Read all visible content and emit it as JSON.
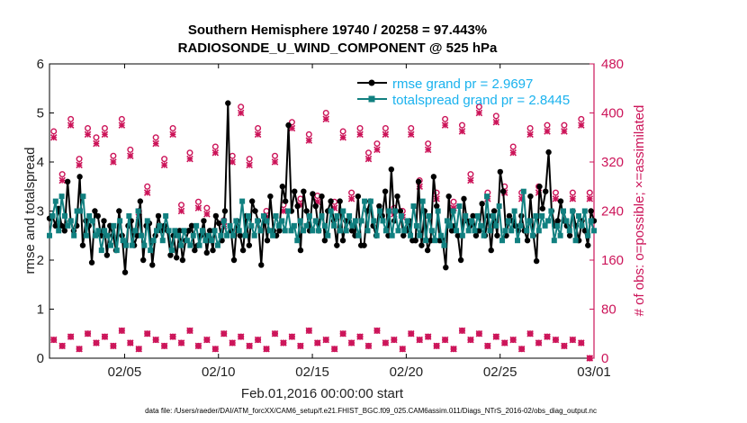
{
  "chart_data": {
    "type": "line",
    "title_line1": "Southern Hemisphere 19740 / 20258 = 97.443%",
    "title_line2": "RADIOSONDE_U_WIND_COMPONENT @ 525 hPa",
    "xlabel": "Feb.01,2016 00:00:00 start",
    "ylabel_left": "rmse and totalspread",
    "ylabel_right": "# of obs: o=possible; ×=assimilated",
    "x_ticks": [
      "02/05",
      "02/10",
      "02/15",
      "02/20",
      "02/25",
      "03/01"
    ],
    "x_tick_days": [
      4,
      9,
      14,
      19,
      24,
      29
    ],
    "x_range_days": [
      0,
      29
    ],
    "y_left_range": [
      0,
      6
    ],
    "y_left_ticks": [
      "0",
      "1",
      "2",
      "3",
      "4",
      "5",
      "6"
    ],
    "y_right_range": [
      0,
      480
    ],
    "y_right_ticks": [
      "0",
      "80",
      "160",
      "240",
      "320",
      "400",
      "480"
    ],
    "footnote": "data file: /Users/raeder/DAI/ATM_forcXX/CAM6_setup/f.e21.FHIST_BGC.f09_025.CAM6assim.011/Diags_NTrS_2016-02/obs_diag_output.nc",
    "series": [
      {
        "name": "rmse",
        "legend": "rmse grand pr = 2.9697",
        "color": "#000000",
        "values": [
          2.85,
          2.9,
          2.7,
          3.05,
          2.7,
          2.6,
          3.6,
          2.8,
          2.6,
          2.7,
          3.7,
          2.3,
          2.8,
          2.7,
          1.95,
          3.0,
          2.9,
          2.5,
          2.8,
          2.1,
          2.7,
          2.5,
          2.2,
          3.0,
          2.5,
          1.75,
          2.7,
          2.8,
          2.3,
          2.5,
          3.2,
          2.0,
          2.7,
          2.75,
          1.9,
          2.5,
          2.9,
          2.6,
          2.7,
          2.6,
          2.1,
          2.5,
          2.05,
          2.6,
          2.0,
          2.4,
          2.6,
          2.7,
          2.2,
          2.3,
          2.5,
          2.8,
          2.15,
          2.6,
          2.2,
          2.9,
          2.75,
          2.4,
          3.0,
          5.2,
          2.6,
          2.0,
          2.8,
          2.5,
          2.2,
          2.9,
          2.3,
          3.2,
          3.0,
          2.8,
          1.9,
          2.9,
          2.4,
          3.3,
          2.6,
          2.5,
          2.6,
          3.5,
          3.2,
          4.75,
          3.0,
          3.4,
          3.1,
          2.2,
          3.4,
          3.0,
          2.6,
          3.35,
          3.1,
          2.6,
          3.3,
          2.4,
          3.0,
          3.2,
          2.8,
          2.3,
          3.2,
          2.4,
          2.8,
          2.8,
          2.6,
          2.5,
          3.3,
          2.3,
          2.3,
          3.0,
          3.2,
          2.7,
          2.5,
          3.1,
          2.9,
          3.4,
          2.5,
          3.85,
          2.8,
          3.3,
          3.0,
          2.5,
          2.6,
          2.8,
          2.4,
          2.4,
          3.6,
          2.3,
          3.0,
          2.2,
          2.4,
          3.7,
          3.1,
          2.4,
          2.4,
          1.85,
          3.3,
          2.6,
          2.7,
          2.5,
          2.0,
          3.25,
          2.8,
          2.7,
          2.9,
          2.5,
          2.6,
          3.15,
          2.5,
          2.9,
          2.2,
          3.0,
          2.5,
          3.8,
          3.4,
          2.5,
          2.9,
          2.8,
          2.7,
          2.6,
          2.9,
          2.6,
          2.4,
          3.3,
          2.5,
          1.98,
          3.5,
          3.05,
          3.4,
          4.2,
          3.0,
          2.7,
          2.8,
          3.2,
          2.8,
          2.7,
          2.5,
          3.0,
          2.7,
          2.4,
          2.8,
          2.6,
          2.3,
          3.0,
          2.8
        ]
      },
      {
        "name": "totalspread",
        "legend": "totalspread grand pr = 2.8445",
        "color": "#118080",
        "values": [
          2.5,
          2.9,
          3.2,
          2.6,
          3.3,
          2.9,
          2.7,
          2.8,
          2.5,
          3.0,
          3.0,
          3.3,
          2.5,
          2.9,
          2.8,
          2.5,
          2.6,
          2.2,
          2.6,
          2.5,
          2.3,
          2.7,
          2.2,
          2.8,
          2.4,
          2.3,
          2.9,
          2.3,
          2.6,
          3.0,
          2.5,
          2.3,
          2.8,
          2.2,
          2.4,
          2.6,
          2.7,
          2.4,
          2.9,
          2.6,
          2.2,
          2.6,
          2.5,
          2.3,
          2.6,
          2.4,
          2.3,
          2.5,
          2.7,
          2.3,
          2.6,
          2.4,
          2.5,
          2.4,
          2.6,
          2.3,
          2.5,
          2.8,
          2.5,
          2.7,
          2.5,
          2.8,
          2.6,
          3.2,
          2.5,
          2.9,
          2.7,
          2.5,
          2.8,
          2.6,
          2.9,
          2.8,
          2.6,
          2.5,
          2.9,
          2.7,
          2.8,
          2.6,
          3.0,
          2.6,
          2.7,
          2.4,
          2.8,
          2.6,
          2.7,
          2.9,
          2.6,
          2.8,
          2.6,
          2.9,
          2.7,
          2.5,
          3.0,
          2.7,
          2.9,
          2.6,
          3.0,
          2.6,
          2.9,
          2.7,
          2.8,
          2.5,
          2.8,
          3.2,
          2.6,
          3.2,
          2.8,
          2.5,
          3.0,
          2.8,
          2.6,
          3.0,
          2.5,
          3.0,
          2.6,
          2.9,
          2.6,
          2.8,
          2.5,
          3.1,
          2.7,
          2.5,
          3.2,
          2.4,
          2.9,
          2.6,
          2.4,
          3.0,
          2.5,
          2.3,
          2.8,
          2.7,
          3.0,
          2.6,
          3.1,
          2.5,
          2.9,
          2.6,
          2.8,
          2.6,
          2.9,
          2.7,
          2.5,
          3.3,
          2.6,
          2.9,
          2.7,
          3.1,
          2.4,
          2.6,
          2.8,
          2.6,
          3.0,
          2.4,
          2.7,
          3.4,
          2.6,
          2.8,
          2.5,
          2.9,
          2.6,
          2.9,
          2.7,
          2.8,
          3.0,
          2.4,
          2.7,
          2.5,
          3.0,
          2.8,
          2.6,
          3.0,
          2.4,
          2.9,
          2.7,
          3.0,
          2.5,
          2.8,
          2.6
        ]
      },
      {
        "name": "obs possible",
        "marker": "o",
        "axis": "right",
        "color": "#cc1459",
        "values": [
          370,
          300,
          390,
          325,
          375,
          360,
          375,
          330,
          390,
          340,
          240,
          280,
          360,
          325,
          375,
          250,
          335,
          255,
          245,
          345,
          225,
          330,
          410,
          325,
          375,
          240,
          330,
          250,
          385,
          260,
          365,
          265,
          400,
          255,
          370,
          270,
          375,
          335,
          350,
          375,
          245,
          240,
          375,
          290,
          350,
          270,
          390,
          255,
          380,
          300,
          410,
          270,
          395,
          280,
          345,
          270,
          375,
          280,
          380,
          270,
          380,
          270,
          390,
          270
        ]
      },
      {
        "name": "obs assimilated",
        "marker": "x",
        "axis": "right",
        "color": "#cc1459",
        "values": [
          360,
          290,
          380,
          315,
          365,
          350,
          365,
          320,
          380,
          330,
          230,
          270,
          350,
          315,
          365,
          240,
          325,
          245,
          235,
          335,
          215,
          320,
          400,
          315,
          365,
          230,
          320,
          240,
          375,
          250,
          355,
          255,
          390,
          245,
          360,
          260,
          365,
          325,
          340,
          365,
          235,
          230,
          365,
          280,
          340,
          260,
          380,
          245,
          370,
          290,
          400,
          260,
          385,
          270,
          335,
          260,
          365,
          270,
          370,
          260,
          370,
          260,
          380,
          260
        ]
      },
      {
        "name": "obs possible low",
        "marker": "o",
        "axis": "right",
        "color": "#cc1459",
        "values": [
          30,
          20,
          35,
          15,
          40,
          25,
          35,
          20,
          45,
          25,
          15,
          40,
          30,
          20,
          35,
          25,
          45,
          20,
          30,
          15,
          40,
          25,
          35,
          20,
          30,
          15,
          40,
          25,
          35,
          20,
          45,
          25,
          30,
          15,
          40,
          25,
          35,
          20,
          45,
          25,
          30,
          15,
          40,
          30,
          35,
          20,
          30,
          15,
          45,
          30,
          40,
          20,
          35,
          25,
          30,
          15,
          40,
          25,
          35,
          30,
          20,
          30,
          25,
          0
        ]
      },
      {
        "name": "obs assimilated low",
        "marker": "x",
        "axis": "right",
        "color": "#cc1459",
        "values": [
          30,
          20,
          35,
          15,
          40,
          25,
          35,
          20,
          45,
          25,
          15,
          40,
          30,
          20,
          35,
          25,
          45,
          20,
          30,
          15,
          40,
          25,
          35,
          20,
          30,
          15,
          40,
          25,
          35,
          20,
          45,
          25,
          30,
          15,
          40,
          25,
          35,
          20,
          45,
          25,
          30,
          15,
          40,
          30,
          35,
          20,
          30,
          15,
          45,
          30,
          40,
          20,
          35,
          25,
          30,
          15,
          40,
          25,
          35,
          30,
          20,
          30,
          25,
          0
        ]
      }
    ]
  }
}
